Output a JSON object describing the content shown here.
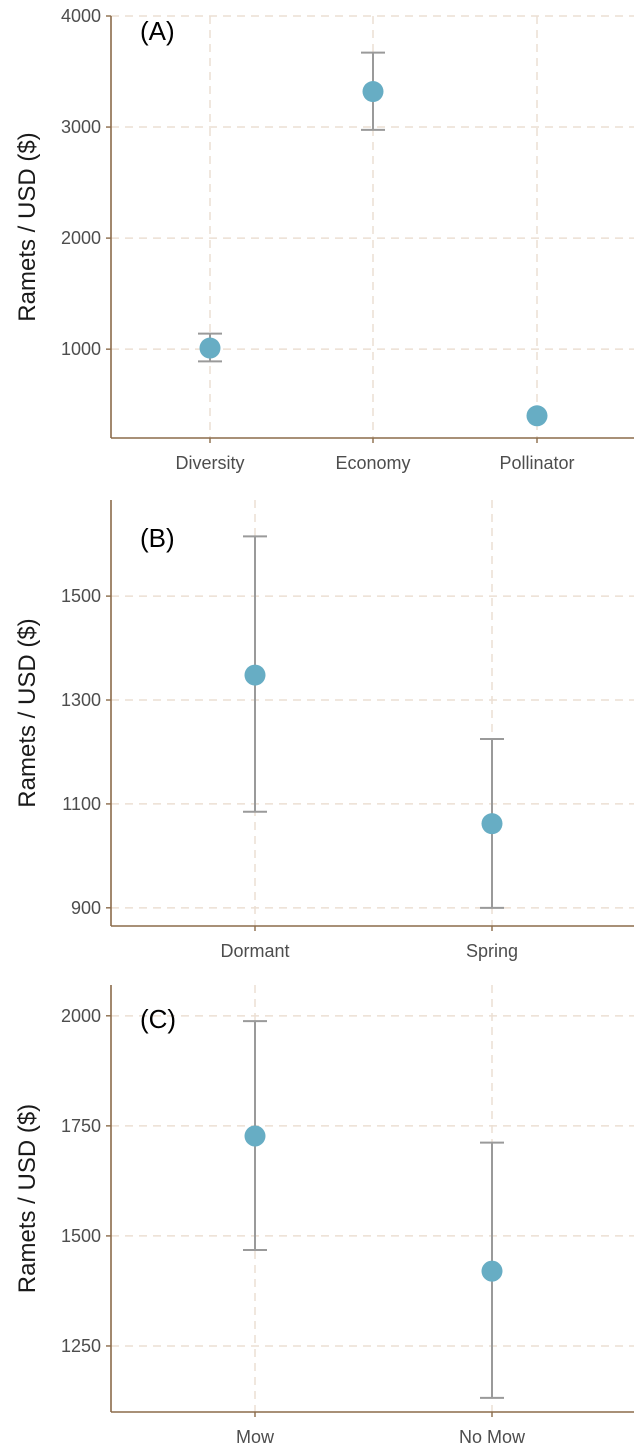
{
  "colors": {
    "point": "#67adc4",
    "error_bar": "#9a9a9a",
    "grid": "#ecdfd3",
    "axis": "#8b6b4a"
  },
  "chart_data": [
    {
      "type": "scatter",
      "panel_label": "(A)",
      "ylabel": "Ramets / USD ($)",
      "categories": [
        "Diversity",
        "Economy",
        "Pollinator"
      ],
      "values": [
        1010,
        3320,
        400
      ],
      "error_low": [
        890,
        2975,
        400
      ],
      "error_high": [
        1140,
        3670,
        400
      ],
      "ylim": [
        200,
        4000
      ],
      "yticks": [
        1000,
        2000,
        3000,
        4000
      ],
      "grid": true
    },
    {
      "type": "scatter",
      "panel_label": "(B)",
      "ylabel": "Ramets / USD ($)",
      "categories": [
        "Dormant",
        "Spring"
      ],
      "values": [
        1348,
        1062
      ],
      "error_low": [
        1085,
        900
      ],
      "error_high": [
        1615,
        1225
      ],
      "ylim": [
        865,
        1685
      ],
      "yticks": [
        900,
        1100,
        1300,
        1500
      ],
      "grid": true
    },
    {
      "type": "scatter",
      "panel_label": "(C)",
      "ylabel": "Ramets / USD ($)",
      "categories": [
        "Mow",
        "No Mow"
      ],
      "values": [
        1727,
        1420
      ],
      "error_low": [
        1468,
        1132
      ],
      "error_high": [
        1988,
        1712
      ],
      "ylim": [
        1100,
        2070
      ],
      "yticks": [
        1250,
        1500,
        1750,
        2000
      ],
      "grid": true
    }
  ]
}
